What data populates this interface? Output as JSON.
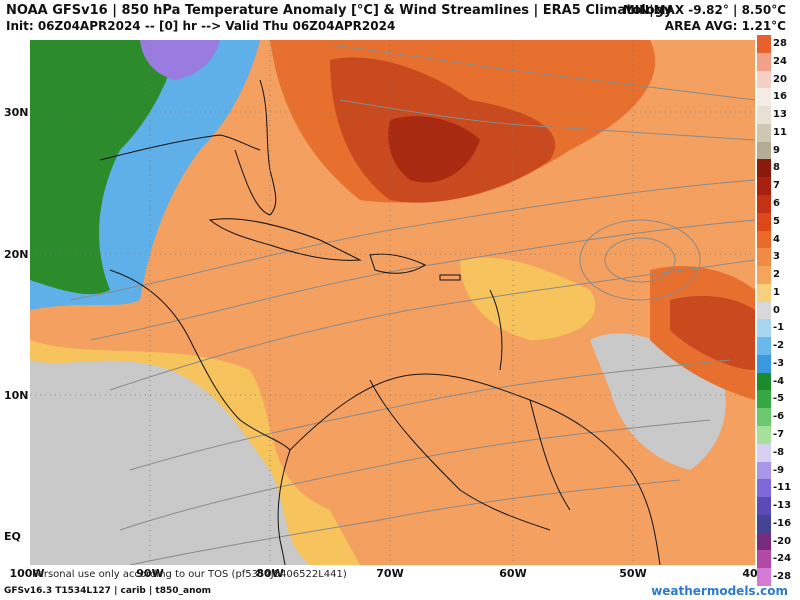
{
  "header": {
    "title": "NOAA GFSv16 | 850 hPa Temperature Anomaly [°C] & Wind Streamlines | ERA5 Climatology",
    "subtitle": "Init: 06Z04APR2024 -- [0] hr --> Valid Thu 06Z04APR2024",
    "minmax": "MIN|MAX -9.82° | 8.50°C",
    "area_avg": "AREA AVG: 1.21°C"
  },
  "map": {
    "lat_labels": [
      "30N",
      "20N",
      "10N",
      "EQ"
    ],
    "lon_labels": [
      "100W",
      "90W",
      "80W",
      "70W",
      "60W",
      "50W",
      "40"
    ],
    "tos_text": "Personal use only according to our TOS (pf5354J5406522L441)",
    "colors": {
      "base": "#f4a060",
      "warm": "#e8702f",
      "hot": "#c84a1e",
      "hottest": "#a82a10",
      "mild": "#f6c35c",
      "neutral": "#c9c9c9",
      "cool": "#5fb0e8",
      "cold": "#2c8c2c",
      "coldest": "#9a7be0",
      "coast": "#111111",
      "streamline": "#8a8a8a"
    }
  },
  "colorbar": {
    "levels": [
      {
        "label": "28",
        "color": "#e8602e"
      },
      {
        "label": "24",
        "color": "#f2a088"
      },
      {
        "label": "20",
        "color": "#f4d0c4"
      },
      {
        "label": "16",
        "color": "#f4ebe6"
      },
      {
        "label": "13",
        "color": "#e8e0d2"
      },
      {
        "label": "11",
        "color": "#cfc6b4"
      },
      {
        "label": "9",
        "color": "#b5aa94"
      },
      {
        "label": "8",
        "color": "#8a1a0c"
      },
      {
        "label": "7",
        "color": "#a82010"
      },
      {
        "label": "6",
        "color": "#c33214"
      },
      {
        "label": "5",
        "color": "#dc4818"
      },
      {
        "label": "4",
        "color": "#ea6a2a"
      },
      {
        "label": "3",
        "color": "#f08a44"
      },
      {
        "label": "2",
        "color": "#f5a45c"
      },
      {
        "label": "1",
        "color": "#f8d07a"
      },
      {
        "label": "0",
        "color": "#d8d8d8"
      },
      {
        "label": "-1",
        "color": "#a8d6f2"
      },
      {
        "label": "-2",
        "color": "#6ab8ec"
      },
      {
        "label": "-3",
        "color": "#3a98de"
      },
      {
        "label": "-4",
        "color": "#1d8a2e"
      },
      {
        "label": "-5",
        "color": "#35a844"
      },
      {
        "label": "-6",
        "color": "#6cc86e"
      },
      {
        "label": "-7",
        "color": "#a6e09a"
      },
      {
        "label": "-8",
        "color": "#d6d0f2"
      },
      {
        "label": "-9",
        "color": "#a896e8"
      },
      {
        "label": "-11",
        "color": "#7c68d8"
      },
      {
        "label": "-13",
        "color": "#5a4bb8"
      },
      {
        "label": "-16",
        "color": "#444494"
      },
      {
        "label": "-20",
        "color": "#7a2a7a"
      },
      {
        "label": "-24",
        "color": "#b04aa4"
      },
      {
        "label": "-28",
        "color": "#d27ad6"
      }
    ]
  },
  "footer": {
    "left": "GFSv16.3 T1534L127 | carib | t850_anom",
    "right": "weathermodels.com"
  }
}
